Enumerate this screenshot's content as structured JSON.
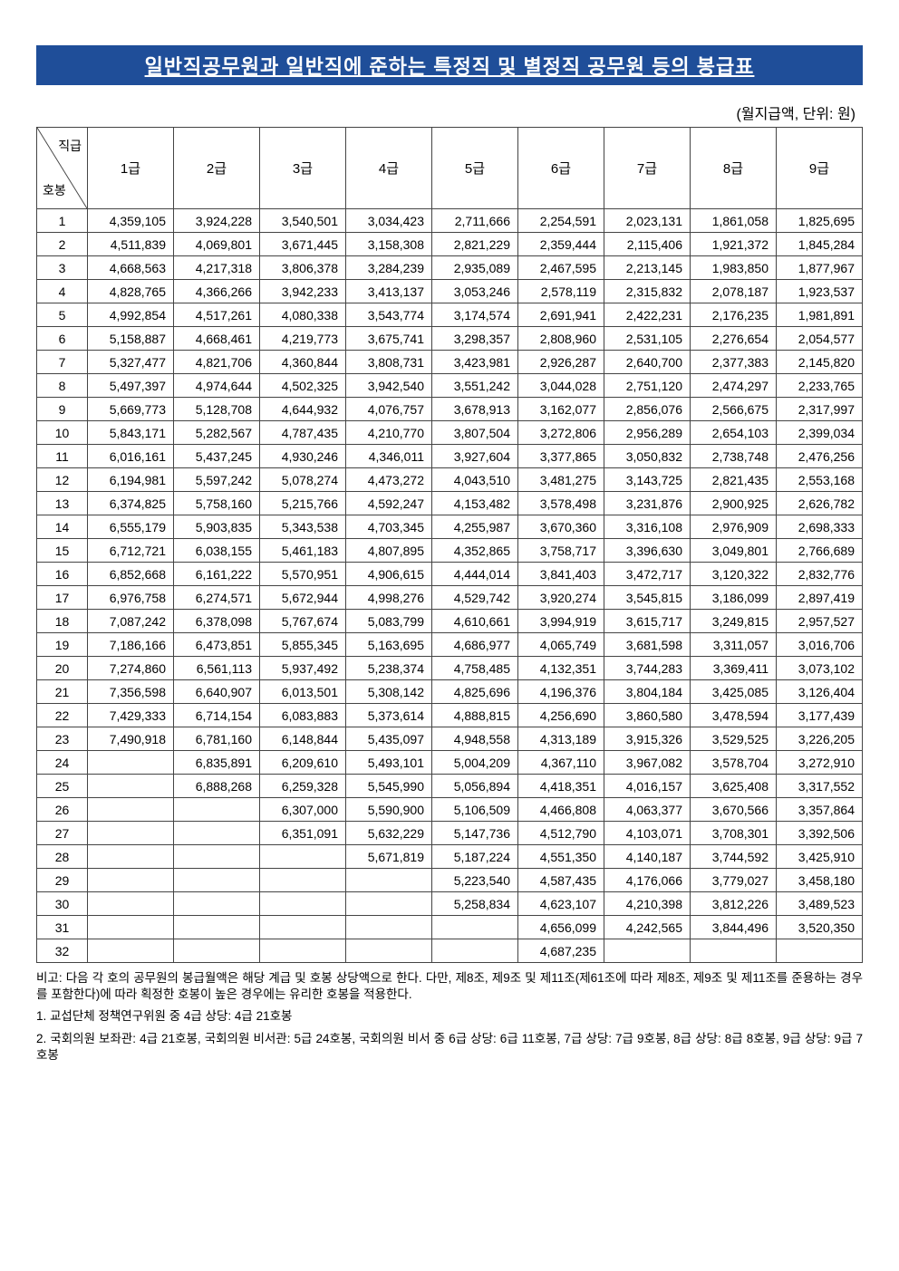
{
  "title": "일반직공무원과 일반직에 준하는 특정직 및 별정직 공무원 등의 봉급표",
  "unit_note": "(월지급액, 단위: 원)",
  "header": {
    "diag_top": "직급",
    "diag_bottom": "호봉",
    "cols": [
      "1급",
      "2급",
      "3급",
      "4급",
      "5급",
      "6급",
      "7급",
      "8급",
      "9급"
    ]
  },
  "rows": [
    {
      "step": "1",
      "v": [
        "4,359,105",
        "3,924,228",
        "3,540,501",
        "3,034,423",
        "2,711,666",
        "2,254,591",
        "2,023,131",
        "1,861,058",
        "1,825,695"
      ]
    },
    {
      "step": "2",
      "v": [
        "4,511,839",
        "4,069,801",
        "3,671,445",
        "3,158,308",
        "2,821,229",
        "2,359,444",
        "2,115,406",
        "1,921,372",
        "1,845,284"
      ]
    },
    {
      "step": "3",
      "v": [
        "4,668,563",
        "4,217,318",
        "3,806,378",
        "3,284,239",
        "2,935,089",
        "2,467,595",
        "2,213,145",
        "1,983,850",
        "1,877,967"
      ]
    },
    {
      "step": "4",
      "v": [
        "4,828,765",
        "4,366,266",
        "3,942,233",
        "3,413,137",
        "3,053,246",
        "2,578,119",
        "2,315,832",
        "2,078,187",
        "1,923,537"
      ]
    },
    {
      "step": "5",
      "v": [
        "4,992,854",
        "4,517,261",
        "4,080,338",
        "3,543,774",
        "3,174,574",
        "2,691,941",
        "2,422,231",
        "2,176,235",
        "1,981,891"
      ]
    },
    {
      "step": "6",
      "v": [
        "5,158,887",
        "4,668,461",
        "4,219,773",
        "3,675,741",
        "3,298,357",
        "2,808,960",
        "2,531,105",
        "2,276,654",
        "2,054,577"
      ]
    },
    {
      "step": "7",
      "v": [
        "5,327,477",
        "4,821,706",
        "4,360,844",
        "3,808,731",
        "3,423,981",
        "2,926,287",
        "2,640,700",
        "2,377,383",
        "2,145,820"
      ]
    },
    {
      "step": "8",
      "v": [
        "5,497,397",
        "4,974,644",
        "4,502,325",
        "3,942,540",
        "3,551,242",
        "3,044,028",
        "2,751,120",
        "2,474,297",
        "2,233,765"
      ]
    },
    {
      "step": "9",
      "v": [
        "5,669,773",
        "5,128,708",
        "4,644,932",
        "4,076,757",
        "3,678,913",
        "3,162,077",
        "2,856,076",
        "2,566,675",
        "2,317,997"
      ]
    },
    {
      "step": "10",
      "v": [
        "5,843,171",
        "5,282,567",
        "4,787,435",
        "4,210,770",
        "3,807,504",
        "3,272,806",
        "2,956,289",
        "2,654,103",
        "2,399,034"
      ]
    },
    {
      "step": "11",
      "v": [
        "6,016,161",
        "5,437,245",
        "4,930,246",
        "4,346,011",
        "3,927,604",
        "3,377,865",
        "3,050,832",
        "2,738,748",
        "2,476,256"
      ]
    },
    {
      "step": "12",
      "v": [
        "6,194,981",
        "5,597,242",
        "5,078,274",
        "4,473,272",
        "4,043,510",
        "3,481,275",
        "3,143,725",
        "2,821,435",
        "2,553,168"
      ]
    },
    {
      "step": "13",
      "v": [
        "6,374,825",
        "5,758,160",
        "5,215,766",
        "4,592,247",
        "4,153,482",
        "3,578,498",
        "3,231,876",
        "2,900,925",
        "2,626,782"
      ]
    },
    {
      "step": "14",
      "v": [
        "6,555,179",
        "5,903,835",
        "5,343,538",
        "4,703,345",
        "4,255,987",
        "3,670,360",
        "3,316,108",
        "2,976,909",
        "2,698,333"
      ]
    },
    {
      "step": "15",
      "v": [
        "6,712,721",
        "6,038,155",
        "5,461,183",
        "4,807,895",
        "4,352,865",
        "3,758,717",
        "3,396,630",
        "3,049,801",
        "2,766,689"
      ]
    },
    {
      "step": "16",
      "v": [
        "6,852,668",
        "6,161,222",
        "5,570,951",
        "4,906,615",
        "4,444,014",
        "3,841,403",
        "3,472,717",
        "3,120,322",
        "2,832,776"
      ]
    },
    {
      "step": "17",
      "v": [
        "6,976,758",
        "6,274,571",
        "5,672,944",
        "4,998,276",
        "4,529,742",
        "3,920,274",
        "3,545,815",
        "3,186,099",
        "2,897,419"
      ]
    },
    {
      "step": "18",
      "v": [
        "7,087,242",
        "6,378,098",
        "5,767,674",
        "5,083,799",
        "4,610,661",
        "3,994,919",
        "3,615,717",
        "3,249,815",
        "2,957,527"
      ]
    },
    {
      "step": "19",
      "v": [
        "7,186,166",
        "6,473,851",
        "5,855,345",
        "5,163,695",
        "4,686,977",
        "4,065,749",
        "3,681,598",
        "3,311,057",
        "3,016,706"
      ]
    },
    {
      "step": "20",
      "v": [
        "7,274,860",
        "6,561,113",
        "5,937,492",
        "5,238,374",
        "4,758,485",
        "4,132,351",
        "3,744,283",
        "3,369,411",
        "3,073,102"
      ]
    },
    {
      "step": "21",
      "v": [
        "7,356,598",
        "6,640,907",
        "6,013,501",
        "5,308,142",
        "4,825,696",
        "4,196,376",
        "3,804,184",
        "3,425,085",
        "3,126,404"
      ]
    },
    {
      "step": "22",
      "v": [
        "7,429,333",
        "6,714,154",
        "6,083,883",
        "5,373,614",
        "4,888,815",
        "4,256,690",
        "3,860,580",
        "3,478,594",
        "3,177,439"
      ]
    },
    {
      "step": "23",
      "v": [
        "7,490,918",
        "6,781,160",
        "6,148,844",
        "5,435,097",
        "4,948,558",
        "4,313,189",
        "3,915,326",
        "3,529,525",
        "3,226,205"
      ]
    },
    {
      "step": "24",
      "v": [
        "",
        "6,835,891",
        "6,209,610",
        "5,493,101",
        "5,004,209",
        "4,367,110",
        "3,967,082",
        "3,578,704",
        "3,272,910"
      ]
    },
    {
      "step": "25",
      "v": [
        "",
        "6,888,268",
        "6,259,328",
        "5,545,990",
        "5,056,894",
        "4,418,351",
        "4,016,157",
        "3,625,408",
        "3,317,552"
      ]
    },
    {
      "step": "26",
      "v": [
        "",
        "",
        "6,307,000",
        "5,590,900",
        "5,106,509",
        "4,466,808",
        "4,063,377",
        "3,670,566",
        "3,357,864"
      ]
    },
    {
      "step": "27",
      "v": [
        "",
        "",
        "6,351,091",
        "5,632,229",
        "5,147,736",
        "4,512,790",
        "4,103,071",
        "3,708,301",
        "3,392,506"
      ]
    },
    {
      "step": "28",
      "v": [
        "",
        "",
        "",
        "5,671,819",
        "5,187,224",
        "4,551,350",
        "4,140,187",
        "3,744,592",
        "3,425,910"
      ]
    },
    {
      "step": "29",
      "v": [
        "",
        "",
        "",
        "",
        "5,223,540",
        "4,587,435",
        "4,176,066",
        "3,779,027",
        "3,458,180"
      ]
    },
    {
      "step": "30",
      "v": [
        "",
        "",
        "",
        "",
        "5,258,834",
        "4,623,107",
        "4,210,398",
        "3,812,226",
        "3,489,523"
      ]
    },
    {
      "step": "31",
      "v": [
        "",
        "",
        "",
        "",
        "",
        "4,656,099",
        "4,242,565",
        "3,844,496",
        "3,520,350"
      ]
    },
    {
      "step": "32",
      "v": [
        "",
        "",
        "",
        "",
        "",
        "4,687,235",
        "",
        "",
        ""
      ]
    }
  ],
  "footnotes": [
    "비고: 다음 각 호의 공무원의 봉급월액은 해당 계급 및 호봉 상당액으로 한다. 다만, 제8조, 제9조 및 제11조(제61조에 따라 제8조, 제9조 및 제11조를 준용하는 경우를 포함한다)에 따라 획정한 호봉이 높은 경우에는 유리한 호봉을 적용한다.",
    "1. 교섭단체 정책연구위원 중 4급 상당: 4급 21호봉",
    "2. 국회의원 보좌관: 4급 21호봉, 국회의원 비서관: 5급 24호봉, 국회의원 비서 중 6급 상당: 6급 11호봉, 7급 상당: 7급 9호봉, 8급 상당: 8급 8호봉, 9급 상당: 9급 7호봉"
  ],
  "colors": {
    "title_bg": "#1f4e99",
    "title_fg": "#ffffff",
    "border": "#444444"
  }
}
